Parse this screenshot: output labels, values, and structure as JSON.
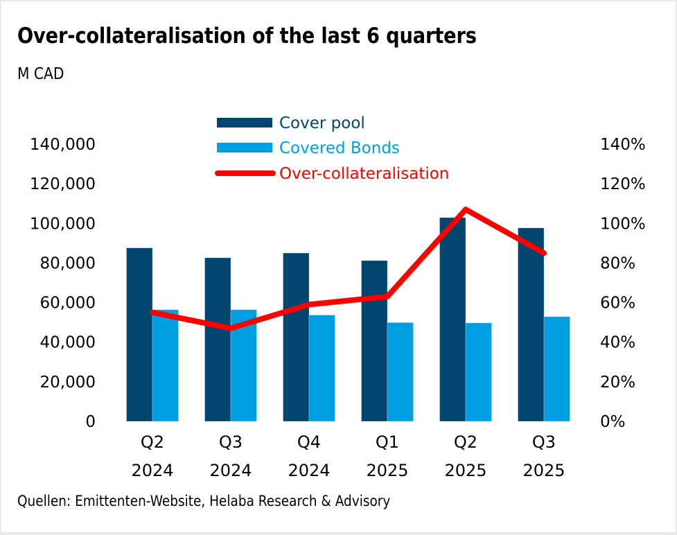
{
  "title": "Over-collateralisation of the last 6 quarters",
  "unit": "M CAD",
  "source": "Quellen: Emittenten-Website, Helaba Research & Advisory",
  "colors": {
    "cover_pool": "#00466F",
    "covered_bonds": "#009FE3",
    "over_collateralisation": "#FF0000"
  },
  "chart_data": {
    "type": "bar",
    "title": "Over-collateralisation of the last 6 quarters",
    "xlabel": "",
    "ylabel": "M CAD",
    "y2label": "",
    "categories": [
      {
        "line1": "Q2",
        "line2": "2024"
      },
      {
        "line1": "Q3",
        "line2": "2024"
      },
      {
        "line1": "Q4",
        "line2": "2024"
      },
      {
        "line1": "Q1",
        "line2": "2025"
      },
      {
        "line1": "Q2",
        "line2": "2025"
      },
      {
        "line1": "Q3",
        "line2": "2025"
      }
    ],
    "series": [
      {
        "name": "Cover pool",
        "type": "bar",
        "axis": "left",
        "values": [
          87600,
          82600,
          85000,
          81200,
          102900,
          97700
        ]
      },
      {
        "name": "Covered Bonds",
        "type": "bar",
        "axis": "left",
        "values": [
          56400,
          56400,
          53700,
          49900,
          49700,
          52900
        ]
      },
      {
        "name": "Over-collateralisation",
        "type": "line",
        "axis": "right",
        "values": [
          55,
          47,
          59,
          63,
          107,
          85
        ]
      }
    ],
    "ylim": [
      0,
      140000
    ],
    "y2lim": [
      0,
      140
    ],
    "yticks": [
      "0",
      "20,000",
      "40,000",
      "60,000",
      "80,000",
      "100,000",
      "120,000",
      "140,000"
    ],
    "y2ticks": [
      "0%",
      "20%",
      "40%",
      "60%",
      "80%",
      "100%",
      "120%",
      "140%"
    ],
    "legend_position": "top-center",
    "grid": false
  }
}
